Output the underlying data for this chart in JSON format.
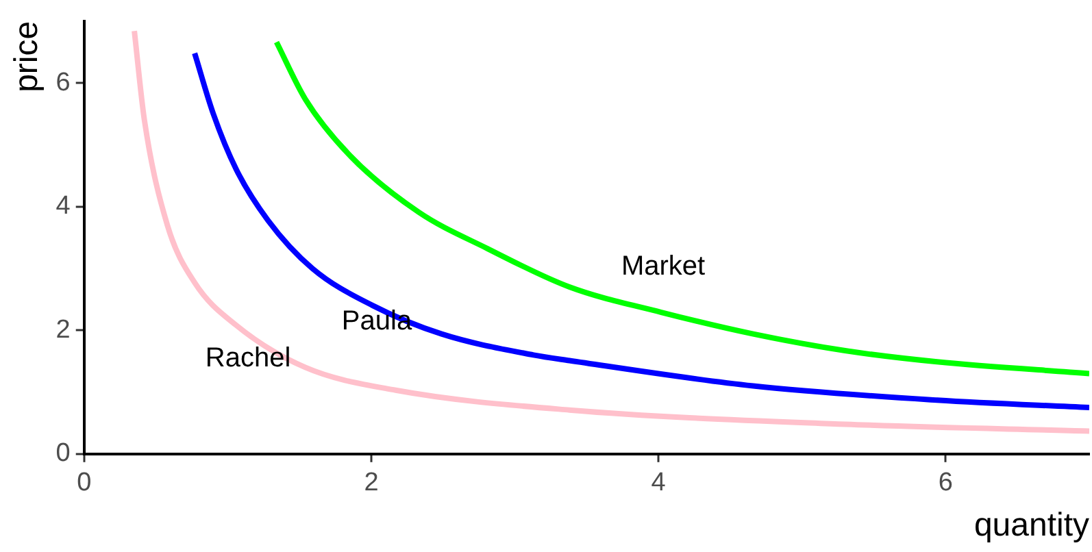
{
  "chart_data": {
    "type": "line",
    "xlabel": "quantity",
    "ylabel": "price",
    "xlim": [
      0,
      7
    ],
    "ylim": [
      0,
      7
    ],
    "xticks": [
      0,
      2,
      4,
      6
    ],
    "yticks": [
      0,
      2,
      4,
      6
    ],
    "grid": false,
    "legend": false,
    "marker": "none",
    "line_style": "solid",
    "series": [
      {
        "name": "Rachel",
        "color": "#ffc0cb",
        "x": [
          0.35,
          0.42,
          0.58,
          0.77,
          1.06,
          1.54,
          2.17,
          3.38,
          5.3,
          7
        ],
        "values": [
          6.84,
          5.4,
          3.7,
          2.77,
          2.08,
          1.4,
          1.03,
          0.71,
          0.48,
          0.37
        ]
      },
      {
        "name": "Paula",
        "color": "#0000ff",
        "x": [
          0.77,
          0.9,
          1.06,
          1.28,
          1.59,
          2.01,
          2.49,
          3.13,
          3.38,
          4.66,
          5.94,
          7
        ],
        "values": [
          6.48,
          5.5,
          4.6,
          3.78,
          3.0,
          2.4,
          1.94,
          1.6,
          1.51,
          1.1,
          0.87,
          0.75
        ]
      },
      {
        "name": "Market",
        "color": "#00ff00",
        "x": [
          1.34,
          1.54,
          1.85,
          2.33,
          2.81,
          3.38,
          4.02,
          4.66,
          5.3,
          5.94,
          7
        ],
        "values": [
          6.66,
          5.74,
          4.83,
          3.91,
          3.32,
          2.7,
          2.29,
          1.94,
          1.67,
          1.49,
          1.3
        ]
      }
    ]
  }
}
